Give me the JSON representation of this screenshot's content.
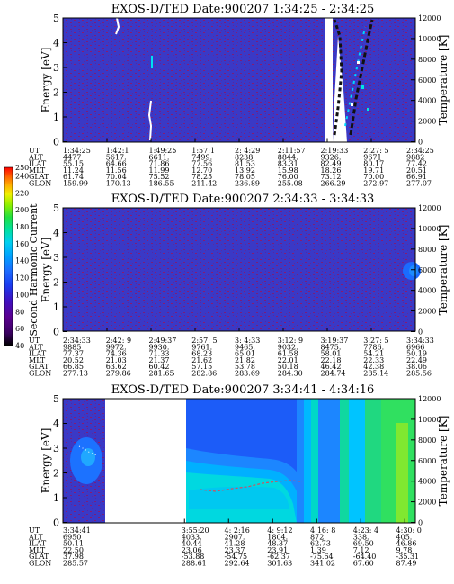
{
  "colorbar": {
    "label": "Second Harmonic Current",
    "ticks": [
      "40",
      "60",
      "80",
      "100",
      "120",
      "140",
      "160",
      "180",
      "200",
      "220",
      "240",
      "250"
    ],
    "colors": [
      "#000000",
      "#3a0060",
      "#5a0090",
      "#4010c0",
      "#1a3cf0",
      "#1c6cff",
      "#00a0ff",
      "#00d0f0",
      "#00e0a0",
      "#20e040",
      "#90f000",
      "#f0f000",
      "#ffb000",
      "#ff6000",
      "#ff0000",
      "#e00000"
    ]
  },
  "chart_data": [
    {
      "type": "heatmap",
      "title": "EXOS-D/TED   Date:900207   1:34:25 - 2:34:25",
      "ylabel": "Energy [eV]",
      "ylabel_right": "Temperature [K]",
      "ylim": [
        0,
        5
      ],
      "ylim_right": [
        0,
        12000
      ],
      "yticks": [
        "0",
        "1",
        "2",
        "3",
        "4",
        "5"
      ],
      "yticks_right": [
        "0",
        "2000",
        "4000",
        "6000",
        "8000",
        "10000",
        "12000"
      ],
      "ephemeris": [
        {
          "label": "UT",
          "values": [
            "1:34:25",
            "1:42:1",
            "1:49:25",
            "1:57:1",
            "2: 4:29",
            "2:11:57",
            "2:19:33",
            "2:27: 5",
            "2:34:25"
          ]
        },
        {
          "label": "ALT",
          "values": [
            "4477",
            "5617.",
            "6611.",
            "7499.",
            "8238",
            "8844.",
            "9326.",
            "9671",
            "9882"
          ]
        },
        {
          "label": "ILAT",
          "values": [
            "55.15",
            "64.66",
            "71.86",
            "77.56",
            "81.53",
            "83.31",
            "82.49",
            "80.17",
            "77.42"
          ]
        },
        {
          "label": "MLT",
          "values": [
            "11.24",
            "11.56",
            "11.99",
            "12.70",
            "13.92",
            "15.98",
            "18.26",
            "19.71",
            "20.51"
          ]
        },
        {
          "label": "GLAT",
          "values": [
            "61.74",
            "70.04",
            "75.52",
            "78.25",
            "78.05",
            "76.00",
            "73.12",
            "70.00",
            "66.91"
          ]
        },
        {
          "label": "GLON",
          "values": [
            "159.99",
            "170.13",
            "186.55",
            "211.42",
            "236.89",
            "255.08",
            "266.29",
            "272.97",
            "277.07"
          ]
        }
      ],
      "gaps": [
        [
          0.745,
          0.765
        ]
      ],
      "features": [
        {
          "kind": "streak",
          "x": 0.05,
          "y": [
            4.7,
            5.0
          ]
        },
        {
          "kind": "streak",
          "x": 0.25,
          "y": [
            0.2,
            1.6
          ]
        },
        {
          "kind": "streak",
          "x": 0.255,
          "y": [
            3.3,
            3.8
          ]
        },
        {
          "kind": "burst",
          "x": [
            0.77,
            0.93
          ],
          "y": [
            0,
            5
          ]
        }
      ]
    },
    {
      "type": "heatmap",
      "title": "EXOS-D/TED   Date:900207   2:34:33 - 3:34:33",
      "ylabel": "Energy [eV]",
      "ylabel_right": "Temperature [K]",
      "ylim": [
        0,
        5
      ],
      "ylim_right": [
        0,
        12000
      ],
      "yticks": [
        "0",
        "1",
        "2",
        "3",
        "4",
        "5"
      ],
      "yticks_right": [
        "0",
        "2000",
        "4000",
        "6000",
        "8000",
        "10000",
        "12000"
      ],
      "ephemeris": [
        {
          "label": "UT",
          "values": [
            "2:34:33",
            "2:42: 9",
            "2:49:37",
            "2:57: 5",
            "3: 4:33",
            "3:12: 9",
            "3:19:37",
            "3:27: 5",
            "3:34:33"
          ]
        },
        {
          "label": "ALT",
          "values": [
            "9885",
            "9972.",
            "9930.",
            "9761.",
            "9465.",
            "9032.",
            "8475.",
            "7786.",
            "6966"
          ]
        },
        {
          "label": "ILAT",
          "values": [
            "77.37",
            "74.36",
            "71.33",
            "68.23",
            "65.01",
            "61.58",
            "58.01",
            "54.21",
            "50.19"
          ]
        },
        {
          "label": "MLT",
          "values": [
            "20.52",
            "21.03",
            "21.37",
            "21.62",
            "21.82",
            "22.01",
            "22.18",
            "22.33",
            "22.49"
          ]
        },
        {
          "label": "GLAT",
          "values": [
            "66.85",
            "63.62",
            "60.42",
            "57.15",
            "53.78",
            "50.18",
            "46.42",
            "42.38",
            "38.06"
          ]
        },
        {
          "label": "GLON",
          "values": [
            "277.13",
            "279.86",
            "281.65",
            "282.86",
            "283.69",
            "284.30",
            "284.74",
            "285.14",
            "285.56"
          ]
        }
      ],
      "gaps": [],
      "features": [
        {
          "kind": "blob",
          "x": 0.985,
          "y": [
            1.9,
            2.9
          ]
        }
      ]
    },
    {
      "type": "heatmap",
      "title": "EXOS-D/TED   Date:900207   3:34:41 - 4:34:16",
      "ylabel": "Energy [eV]",
      "ylabel_right": "Temperature [K]",
      "ylim": [
        0,
        5
      ],
      "ylim_right": [
        0,
        12000
      ],
      "yticks": [
        "0",
        "1",
        "2",
        "3",
        "4",
        "5"
      ],
      "yticks_right": [
        "0",
        "2000",
        "4000",
        "6000",
        "8000",
        "10000",
        "12000"
      ],
      "ephemeris": [
        {
          "label": "UT",
          "values": [
            "3:34:41",
            "3:55:20",
            "4: 2:16",
            "4: 9:12",
            "4:16: 8",
            "4:23: 4",
            "4:30: 0"
          ]
        },
        {
          "label": "ALT",
          "values": [
            "6950",
            "4033.",
            "2907.",
            "1804.",
            "872.",
            "338.",
            "405."
          ]
        },
        {
          "label": "ILAT",
          "values": [
            "50.11",
            "40.44",
            "41.28",
            "48.37",
            "62.73",
            "69.50",
            "46.86"
          ]
        },
        {
          "label": "MLT",
          "values": [
            "22.50",
            "23.06",
            "23.37",
            "23.91",
            "1.39",
            "7.12",
            "9.78"
          ]
        },
        {
          "label": "GLAT",
          "values": [
            "37.98",
            "-53.88",
            "-54.75",
            "-62.37",
            "-75.64",
            "-64.40",
            "-35.31"
          ]
        },
        {
          "label": "GLON",
          "values": [
            "285.57",
            "288.61",
            "292.64",
            "301.63",
            "341.02",
            "67.60",
            "87.49"
          ]
        }
      ],
      "ut_positions": [
        0,
        0.345,
        0.47,
        0.595,
        0.72,
        0.845,
        0.97
      ],
      "gaps": [
        [
          0.12,
          0.355
        ]
      ],
      "features": [
        {
          "kind": "patch",
          "x": [
            0,
            0.12
          ],
          "y": [
            1.8,
            4.6
          ]
        },
        {
          "kind": "band",
          "x": [
            0.355,
            0.72
          ],
          "y": [
            1.0,
            3.0
          ]
        },
        {
          "kind": "wall",
          "x": [
            0.72,
            1.0
          ],
          "y": [
            0,
            5
          ]
        },
        {
          "kind": "trace",
          "x": [
            0.38,
            0.66
          ],
          "y": [
            1.3,
            1.8
          ]
        }
      ]
    }
  ]
}
